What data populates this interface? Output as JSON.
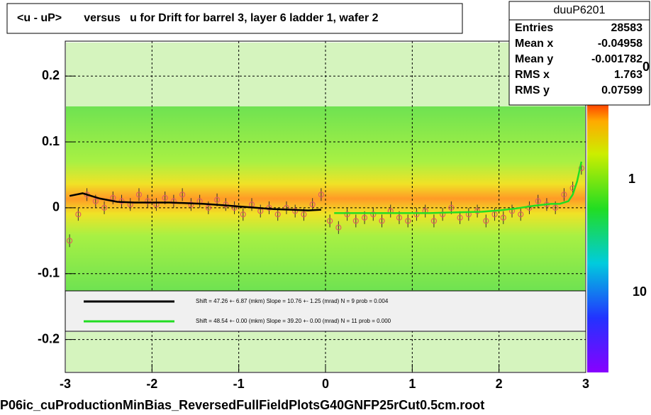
{
  "chart_data": {
    "type": "scatter",
    "title": "<u - uP>       versus   u for Drift for barrel 3, layer 6 ladder 1, wafer 2",
    "footer": "P06ic_cuProductionMinBias_ReversedFullFieldPlotsG40GNFP25rCut0.5cm.root",
    "xlim": [
      -3,
      3
    ],
    "xticks": [
      -3,
      -2,
      -1,
      0,
      1,
      2,
      3
    ],
    "ylim": [
      -0.25,
      0.253
    ],
    "yticks": [
      -0.2,
      -0.1,
      0,
      0.1,
      0.2
    ],
    "grid": true,
    "stats": {
      "name": "duuP6201",
      "rows": [
        [
          "Entries",
          "28583"
        ],
        [
          "Mean x",
          "-0.04958"
        ],
        [
          "Mean y",
          "-0.001782"
        ],
        [
          "RMS x",
          "1.763"
        ],
        [
          "RMS y",
          "0.07599"
        ]
      ]
    },
    "z_labels": [
      "0",
      "1",
      "10"
    ],
    "legend": [
      {
        "color": "#000000",
        "text": "Shift =    47.26 +- 6.87 (mkm) Slope =    10.76 +- 1.25 (mrad)  N = 9 prob = 0.004"
      },
      {
        "color": "#22dd22",
        "text": "Shift =    48.54 +- 0.00 (mkm) Slope =    39.20 +- 0.00 (mrad)  N = 11 prob = 0.000"
      }
    ],
    "profile": {
      "color": "#e06060",
      "x": [
        -2.95,
        -2.85,
        -2.75,
        -2.65,
        -2.55,
        -2.45,
        -2.35,
        -2.25,
        -2.15,
        -2.05,
        -1.95,
        -1.85,
        -1.75,
        -1.65,
        -1.55,
        -1.45,
        -1.35,
        -1.25,
        -1.15,
        -1.05,
        -0.95,
        -0.85,
        -0.75,
        -0.65,
        -0.55,
        -0.45,
        -0.35,
        -0.25,
        -0.15,
        -0.05,
        0.05,
        0.15,
        0.25,
        0.35,
        0.45,
        0.55,
        0.65,
        0.75,
        0.85,
        0.95,
        1.05,
        1.15,
        1.25,
        1.35,
        1.45,
        1.55,
        1.65,
        1.75,
        1.85,
        1.95,
        2.05,
        2.15,
        2.25,
        2.35,
        2.45,
        2.55,
        2.65,
        2.75,
        2.85,
        2.95
      ],
      "values": [
        -0.05,
        -0.01,
        0.02,
        0.01,
        0.0,
        0.015,
        0.01,
        0.005,
        0.02,
        0.01,
        0.005,
        0.015,
        0.01,
        0.02,
        0.005,
        0.01,
        0.0,
        0.012,
        0.005,
        0.0,
        -0.01,
        0.005,
        -0.005,
        0.0,
        -0.01,
        0.0,
        -0.005,
        -0.01,
        0.005,
        0.02,
        -0.02,
        -0.03,
        -0.01,
        -0.02,
        -0.015,
        -0.01,
        -0.02,
        -0.005,
        -0.015,
        -0.02,
        -0.01,
        -0.005,
        -0.02,
        -0.01,
        0.0,
        -0.015,
        -0.01,
        -0.005,
        -0.02,
        -0.01,
        -0.015,
        -0.005,
        -0.01,
        0.0,
        0.01,
        0.005,
        0.0,
        0.02,
        0.03,
        0.06
      ]
    },
    "series": [
      {
        "color": "#000000",
        "x": [
          -2.95,
          -2.8,
          -2.6,
          -2.4,
          -2.2,
          -2.0,
          -1.8,
          -1.6,
          -1.4,
          -1.2,
          -1.0,
          -0.8,
          -0.6,
          -0.4,
          -0.2,
          -0.05
        ],
        "values": [
          0.018,
          0.022,
          0.014,
          0.009,
          0.008,
          0.008,
          0.008,
          0.007,
          0.006,
          0.004,
          0.002,
          0.0,
          -0.002,
          -0.003,
          -0.004,
          -0.003
        ]
      },
      {
        "color": "#22dd22",
        "x": [
          0.1,
          0.3,
          0.5,
          0.8,
          1.0,
          1.2,
          1.5,
          1.8,
          2.0,
          2.2,
          2.4,
          2.6,
          2.7,
          2.8,
          2.85,
          2.9,
          2.95
        ],
        "values": [
          -0.008,
          -0.008,
          -0.008,
          -0.008,
          -0.008,
          -0.008,
          -0.007,
          -0.006,
          -0.004,
          -0.001,
          0.003,
          0.006,
          0.006,
          0.01,
          0.02,
          0.04,
          0.07
        ]
      }
    ]
  }
}
